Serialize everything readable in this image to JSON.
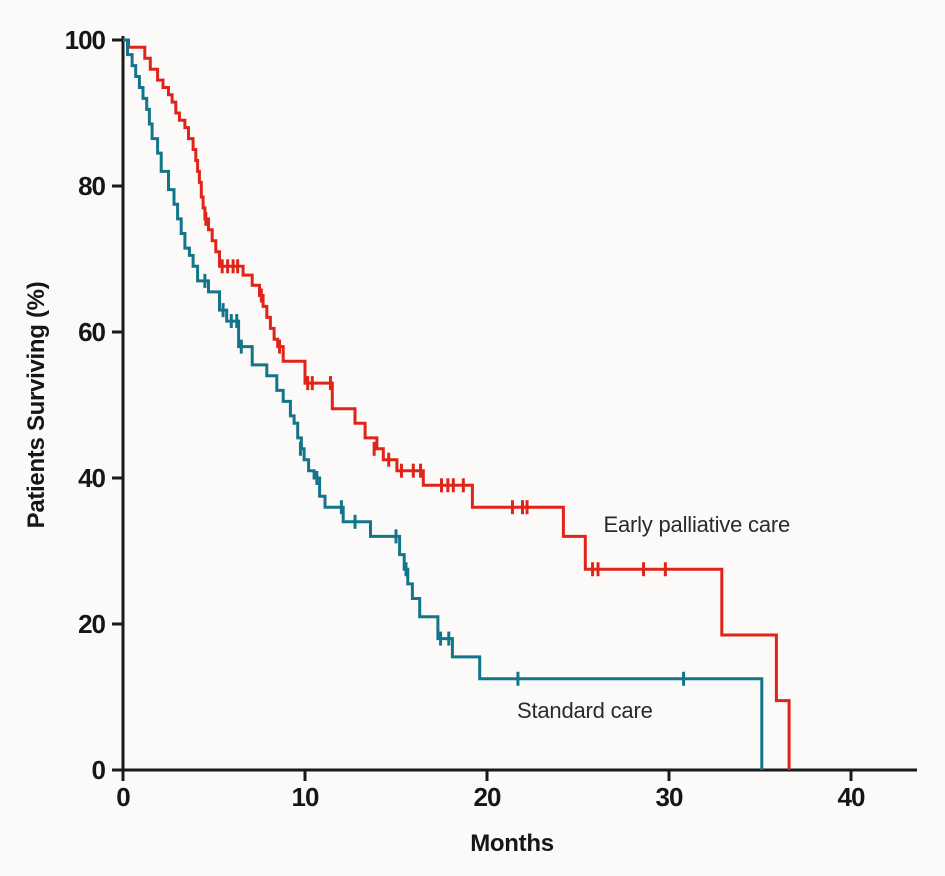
{
  "chart_data": {
    "type": "line",
    "subtype": "kaplan-meier-step-survival",
    "title": "",
    "xlabel": "Months",
    "ylabel": "Patients Surviving (%)",
    "xlim": [
      0,
      43.6
    ],
    "ylim": [
      0,
      100
    ],
    "x_ticks": [
      0,
      10,
      20,
      30,
      40
    ],
    "y_ticks": [
      0,
      20,
      40,
      60,
      80,
      100
    ],
    "grid": false,
    "legend_position": "inline-annotations",
    "axis_color": "#1a1a1a",
    "series": [
      {
        "name": "Early palliative care",
        "color": "#e02419",
        "steps": [
          [
            0,
            100
          ],
          [
            0.3,
            99
          ],
          [
            1.2,
            97.5
          ],
          [
            1.5,
            96
          ],
          [
            1.9,
            94.5
          ],
          [
            2.2,
            93.5
          ],
          [
            2.5,
            92.5
          ],
          [
            2.7,
            91.5
          ],
          [
            2.9,
            90
          ],
          [
            3.1,
            89
          ],
          [
            3.4,
            88
          ],
          [
            3.6,
            86.5
          ],
          [
            3.85,
            85
          ],
          [
            4.0,
            83.5
          ],
          [
            4.1,
            82
          ],
          [
            4.2,
            80.5
          ],
          [
            4.3,
            78.5
          ],
          [
            4.4,
            77
          ],
          [
            4.5,
            75.5
          ],
          [
            4.7,
            74
          ],
          [
            4.9,
            72.5
          ],
          [
            5.1,
            71
          ],
          [
            5.3,
            69
          ],
          [
            6.6,
            67.8
          ],
          [
            7.1,
            66.4
          ],
          [
            7.5,
            65
          ],
          [
            7.7,
            63.5
          ],
          [
            7.9,
            62
          ],
          [
            8.1,
            60.5
          ],
          [
            8.3,
            59
          ],
          [
            8.5,
            58
          ],
          [
            8.8,
            56
          ],
          [
            10.0,
            53
          ],
          [
            11.5,
            49.5
          ],
          [
            12.75,
            47.5
          ],
          [
            13.3,
            45.5
          ],
          [
            13.95,
            44
          ],
          [
            14.3,
            42.5
          ],
          [
            15.05,
            41
          ],
          [
            16.5,
            39
          ],
          [
            19.2,
            36
          ],
          [
            24.2,
            32
          ],
          [
            25.4,
            27.5
          ],
          [
            32.9,
            18.5
          ],
          [
            35.9,
            9.5
          ],
          [
            36.6,
            0
          ]
        ],
        "censor_marks": [
          [
            4.55,
            75.5
          ],
          [
            5.45,
            69
          ],
          [
            5.75,
            69
          ],
          [
            6.05,
            69
          ],
          [
            6.3,
            69
          ],
          [
            7.6,
            65
          ],
          [
            8.6,
            58
          ],
          [
            10.15,
            53
          ],
          [
            10.4,
            53
          ],
          [
            11.4,
            53
          ],
          [
            13.8,
            44
          ],
          [
            14.6,
            42.5
          ],
          [
            15.3,
            41
          ],
          [
            15.95,
            41
          ],
          [
            16.35,
            41
          ],
          [
            17.5,
            39
          ],
          [
            17.85,
            39
          ],
          [
            18.15,
            39
          ],
          [
            18.7,
            39
          ],
          [
            21.4,
            36
          ],
          [
            21.95,
            36
          ],
          [
            22.2,
            36
          ],
          [
            25.8,
            27.5
          ],
          [
            26.1,
            27.5
          ],
          [
            28.6,
            27.5
          ],
          [
            29.8,
            27.5
          ]
        ]
      },
      {
        "name": "Standard care",
        "color": "#13758a",
        "steps": [
          [
            0,
            100
          ],
          [
            0.25,
            98
          ],
          [
            0.5,
            96.5
          ],
          [
            0.7,
            95
          ],
          [
            0.9,
            93.5
          ],
          [
            1.1,
            92
          ],
          [
            1.3,
            90.5
          ],
          [
            1.45,
            88.5
          ],
          [
            1.6,
            86.5
          ],
          [
            1.9,
            84.5
          ],
          [
            2.1,
            82
          ],
          [
            2.5,
            79.5
          ],
          [
            2.8,
            77.5
          ],
          [
            3.0,
            75.5
          ],
          [
            3.2,
            73.5
          ],
          [
            3.4,
            71.5
          ],
          [
            3.65,
            70.5
          ],
          [
            3.85,
            69
          ],
          [
            4.1,
            67
          ],
          [
            4.7,
            65.5
          ],
          [
            5.3,
            63
          ],
          [
            5.7,
            61.5
          ],
          [
            6.35,
            58
          ],
          [
            7.1,
            55.5
          ],
          [
            7.9,
            54
          ],
          [
            8.45,
            52
          ],
          [
            8.8,
            50.5
          ],
          [
            9.2,
            48.5
          ],
          [
            9.4,
            47.5
          ],
          [
            9.6,
            45.5
          ],
          [
            9.8,
            44
          ],
          [
            9.95,
            42.5
          ],
          [
            10.2,
            41
          ],
          [
            10.5,
            40
          ],
          [
            10.8,
            37.5
          ],
          [
            11.1,
            36
          ],
          [
            12.1,
            34
          ],
          [
            13.6,
            32
          ],
          [
            15.2,
            29.5
          ],
          [
            15.45,
            27.5
          ],
          [
            15.65,
            25.5
          ],
          [
            15.9,
            23.5
          ],
          [
            16.3,
            21
          ],
          [
            17.3,
            18
          ],
          [
            18.1,
            15.5
          ],
          [
            19.6,
            12.5
          ],
          [
            35.1,
            0
          ]
        ],
        "censor_marks": [
          [
            4.5,
            67
          ],
          [
            5.5,
            63
          ],
          [
            5.95,
            61.5
          ],
          [
            6.25,
            61.5
          ],
          [
            6.5,
            58
          ],
          [
            9.75,
            44
          ],
          [
            10.65,
            40
          ],
          [
            12.0,
            36
          ],
          [
            12.75,
            34
          ],
          [
            15.0,
            32
          ],
          [
            15.55,
            27.5
          ],
          [
            17.45,
            18
          ],
          [
            17.9,
            18
          ],
          [
            21.7,
            12.5
          ],
          [
            30.8,
            12.5
          ]
        ]
      }
    ],
    "annotations": [
      {
        "text": "Early palliative care",
        "month": 26.4,
        "pct": 32.6,
        "series": "Early palliative care"
      },
      {
        "text": "Standard care",
        "month": 21.65,
        "pct": 7.1,
        "series": "Standard care"
      }
    ]
  }
}
